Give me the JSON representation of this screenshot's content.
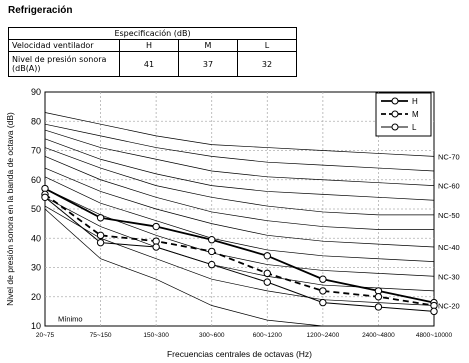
{
  "heading": "Refrigeración",
  "spec_table": {
    "header": "Especificación (dB)",
    "rows": [
      {
        "label": "Velocidad ventilador",
        "values": [
          "H",
          "M",
          "L"
        ]
      },
      {
        "label": "Nivel de presión sonora (dB(A))",
        "values": [
          "41",
          "37",
          "32"
        ]
      }
    ]
  },
  "chart_data": {
    "type": "line",
    "xlabel": "Frecuencias centrales de octavas (Hz)",
    "ylabel": "Nivel de presión sonora en la banda de octava (dB)",
    "categories": [
      "20~75",
      "75~150",
      "150~300",
      "300~600",
      "600~1200",
      "1200~2400",
      "2400~4800",
      "4800~10000"
    ],
    "ylim": [
      10,
      90
    ],
    "yticks": [
      10,
      20,
      30,
      40,
      50,
      60,
      70,
      80,
      90
    ],
    "grid": true,
    "legend_position": "top-right",
    "series": [
      {
        "name": "H",
        "style": "solid",
        "values": [
          57,
          47,
          44,
          39.5,
          34,
          26,
          22,
          18
        ]
      },
      {
        "name": "M",
        "style": "dashed",
        "values": [
          55,
          41,
          39,
          35.5,
          28,
          22,
          20,
          17
        ]
      },
      {
        "name": "L",
        "style": "solid-thin",
        "values": [
          54,
          38.5,
          37,
          31,
          25,
          18,
          16.5,
          15
        ]
      }
    ],
    "nc_curves": [
      {
        "label": "NC-70",
        "values": [
          83,
          79,
          75,
          72,
          71,
          70,
          69,
          68
        ]
      },
      {
        "label": "",
        "values": [
          79,
          75,
          71,
          68,
          66,
          65,
          64,
          63
        ]
      },
      {
        "label": "NC-60",
        "values": [
          77,
          71,
          67,
          63,
          61,
          60,
          59,
          58
        ]
      },
      {
        "label": "",
        "values": [
          74,
          67,
          62,
          58,
          56,
          55,
          54,
          53
        ]
      },
      {
        "label": "NC-50",
        "values": [
          71,
          64,
          58,
          54,
          51,
          49,
          48,
          48
        ]
      },
      {
        "label": "",
        "values": [
          68,
          60,
          54,
          49,
          46,
          44,
          43,
          43
        ]
      },
      {
        "label": "NC-40",
        "values": [
          64,
          56,
          50,
          45,
          41,
          39,
          38,
          37
        ]
      },
      {
        "label": "",
        "values": [
          61,
          52,
          46,
          40,
          36,
          34,
          33,
          32
        ]
      },
      {
        "label": "NC-30",
        "values": [
          57,
          48,
          41,
          35,
          31,
          29,
          28,
          27
        ]
      },
      {
        "label": "",
        "values": [
          54,
          44,
          37,
          31,
          27,
          24,
          23,
          22
        ]
      },
      {
        "label": "NC-20",
        "values": [
          51,
          40,
          33,
          26,
          22,
          19,
          18,
          17
        ]
      }
    ],
    "threshold_label": "Mínimo",
    "threshold_curve": [
      50,
      33,
      26,
      17,
      12,
      10,
      10,
      10
    ],
    "colors": {
      "curves": "#000000",
      "grid": "#b0b0b0"
    }
  }
}
